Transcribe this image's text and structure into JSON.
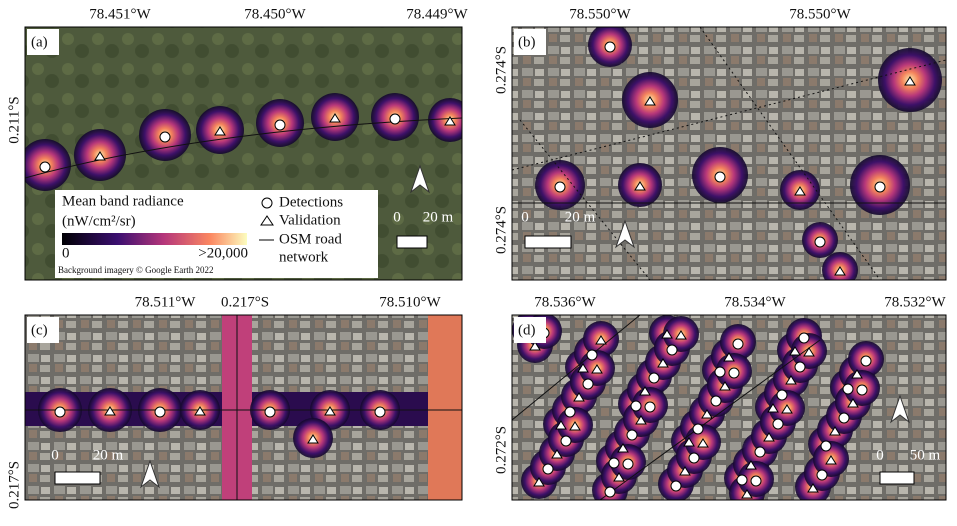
{
  "panels": [
    {
      "label": "(a)",
      "top_labels": [
        "78.451°W",
        "78.450°W",
        "78.449°W"
      ],
      "left_labels": [
        "0.211°S"
      ],
      "scale": {
        "zero": "0",
        "length": "20 m"
      }
    },
    {
      "label": "(b)",
      "top_labels": [
        "78.550°W",
        "78.550°W"
      ],
      "left_labels": [
        "0.274°S",
        "0.274°S"
      ],
      "scale": {
        "zero": "0",
        "length": "20 m"
      }
    },
    {
      "label": "(c)",
      "top_labels": [
        "78.511°W",
        "0.217°S",
        "78.510°W"
      ],
      "left_labels": [
        "0.217°S"
      ],
      "scale": {
        "zero": "0",
        "length": "20 m"
      }
    },
    {
      "label": "(d)",
      "top_labels": [
        "78.536°W",
        "78.534°W",
        "78.532°W"
      ],
      "left_labels": [
        "0.272°S"
      ],
      "scale": {
        "zero": "0",
        "length": "50 m"
      }
    }
  ],
  "legend": {
    "title": "Mean band radiance",
    "unit": "(nW/cm²/sr)",
    "min": "0",
    "max": ">20,000",
    "detections": "Detections",
    "validation": "Validation",
    "road_line1": "OSM road",
    "road_line2": "network"
  },
  "credit": "Background imagery © Google Earth 2022"
}
